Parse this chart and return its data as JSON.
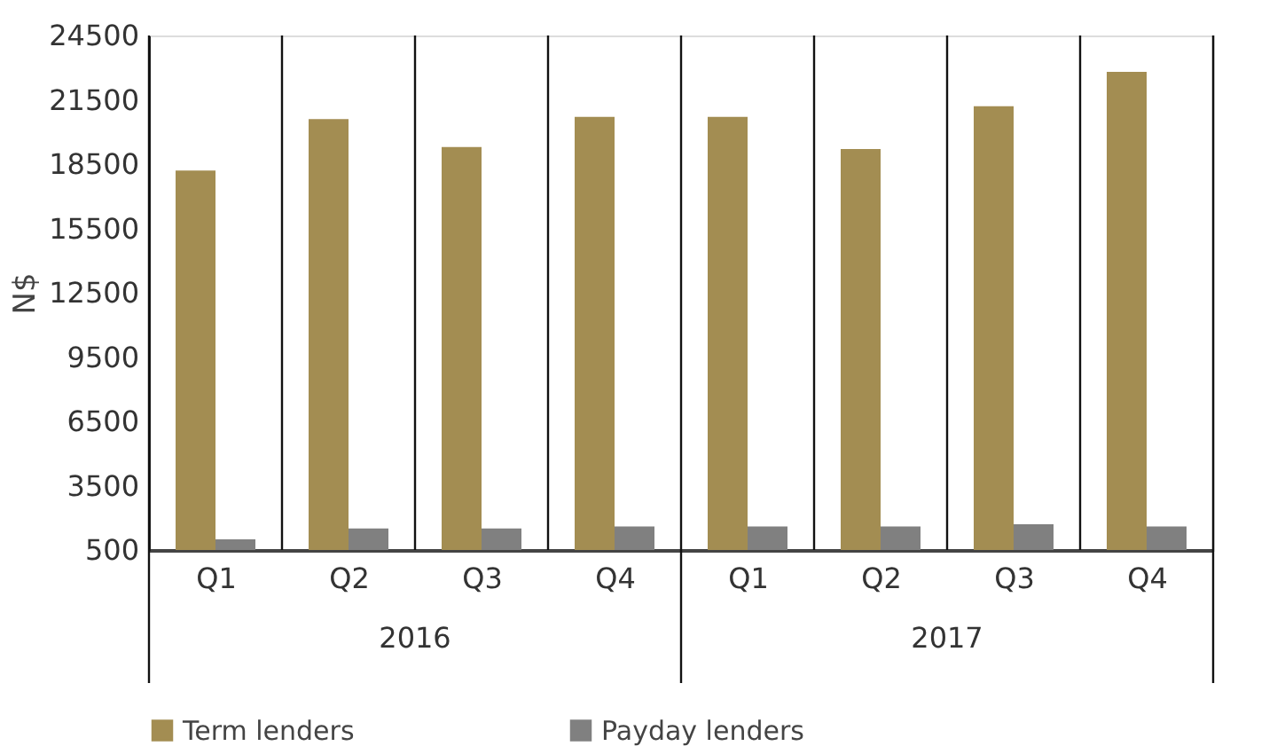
{
  "chart_data": {
    "type": "bar",
    "ylabel": "N$",
    "categories": [
      "Q1",
      "Q2",
      "Q3",
      "Q4",
      "Q1",
      "Q2",
      "Q3",
      "Q4"
    ],
    "series": [
      {
        "name": "Term lenders",
        "color": "#a38d52",
        "values": [
          18200,
          20600,
          19300,
          20700,
          20700,
          19200,
          21200,
          22800
        ]
      },
      {
        "name": "Payday lenders",
        "color": "#808080",
        "values": [
          1000,
          1500,
          1500,
          1600,
          1600,
          1600,
          1700,
          1600
        ]
      }
    ],
    "annotations": [
      "2016",
      "2017"
    ],
    "ylim": [
      500,
      24500
    ],
    "yticks": [
      500,
      3500,
      6500,
      9500,
      12500,
      15500,
      18500,
      21500,
      24500
    ],
    "legend": "bottom"
  }
}
